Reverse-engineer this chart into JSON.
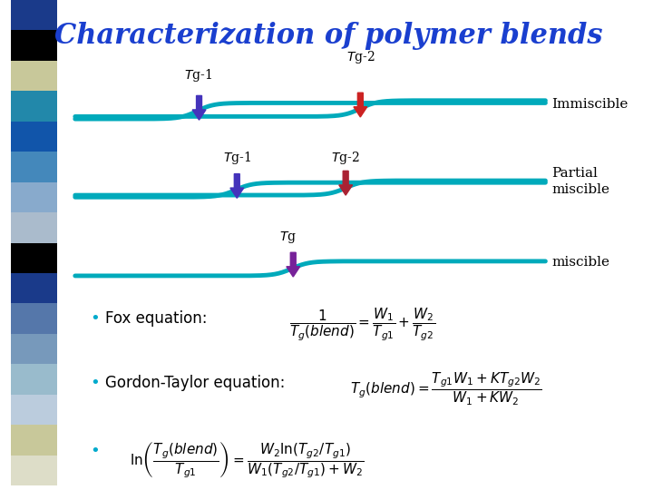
{
  "title": "Characterization of polymer blends",
  "title_color": "#1a3fcf",
  "title_fontsize": 22,
  "bg_color": "#ffffff",
  "curve_color": "#00aabb",
  "curve_linewidth": 3.5,
  "sidebar_colors": [
    "#1a3a8a",
    "#000000",
    "#c8c89a",
    "#2288aa",
    "#1155aa",
    "#4488bb",
    "#88aacc",
    "#aabbcc",
    "#000000",
    "#1a3a8a",
    "#5577aa",
    "#7799bb",
    "#99bbcc",
    "#bbccdd",
    "#c8c89a",
    "#ddddc8"
  ],
  "arrow1_color": "#4433bb",
  "arrow2_color": "#cc2222",
  "arrow3_color": "#772299",
  "bullet": "•",
  "fox_label": "Fox equation:",
  "gordon_label": "Gordon-Taylor equation:",
  "label_fontsize": 11,
  "formula_fontsize": 11,
  "bullet_color": "#00aacc"
}
